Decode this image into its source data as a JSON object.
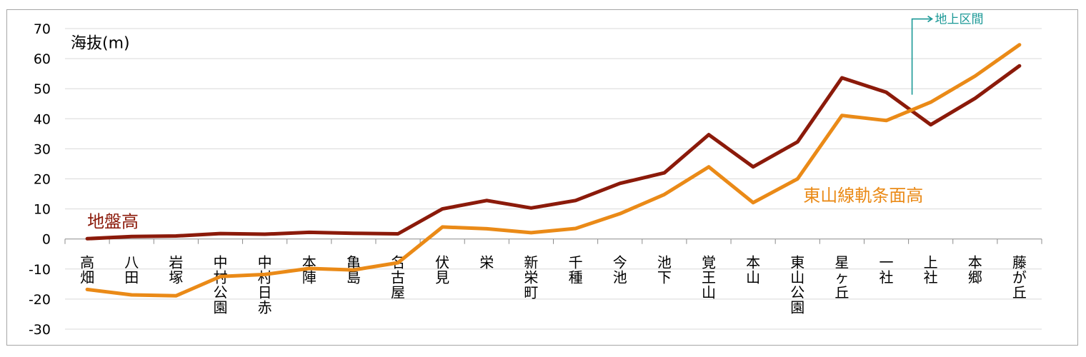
{
  "colors": {
    "ground": "#8b1a0a",
    "track": "#ea8a17",
    "annotation": "#1a9896",
    "grid": "#d9d9d9",
    "axis": "#8c8c8c"
  },
  "chart_data": {
    "type": "line",
    "ylabel": "海抜(m)",
    "ylim": [
      -30,
      70
    ],
    "yticks": [
      70,
      60,
      50,
      40,
      30,
      20,
      10,
      0,
      -10,
      -20,
      -30
    ],
    "grid": true,
    "categories": [
      "高畑",
      "八田",
      "岩塚",
      "中村公園",
      "中村日赤",
      "本陣",
      "亀島",
      "名古屋",
      "伏見",
      "栄",
      "新栄町",
      "千種",
      "今池",
      "池下",
      "覚王山",
      "本山",
      "東山公園",
      "星ヶ丘",
      "一社",
      "上社",
      "本郷",
      "藤が丘"
    ],
    "series": [
      {
        "name": "地盤高",
        "color": "#8b1a0a",
        "values": [
          0.1,
          0.8,
          1.0,
          1.8,
          1.6,
          2.2,
          1.9,
          1.7,
          10.0,
          12.8,
          10.3,
          12.8,
          18.5,
          22.0,
          34.7,
          24.0,
          32.3,
          53.6,
          48.8,
          38.0,
          46.8,
          57.6
        ]
      },
      {
        "name": "東山線軌条面高",
        "color": "#ea8a17",
        "values": [
          -16.8,
          -18.6,
          -18.9,
          -12.5,
          -11.8,
          -9.8,
          -10.3,
          -7.9,
          4.0,
          3.4,
          2.1,
          3.5,
          8.4,
          14.8,
          24.0,
          12.1,
          20.0,
          41.1,
          39.4,
          45.5,
          54.2,
          64.6
        ]
      }
    ],
    "annotations": [
      {
        "text": "地上区間",
        "after_category": "一社"
      }
    ]
  }
}
